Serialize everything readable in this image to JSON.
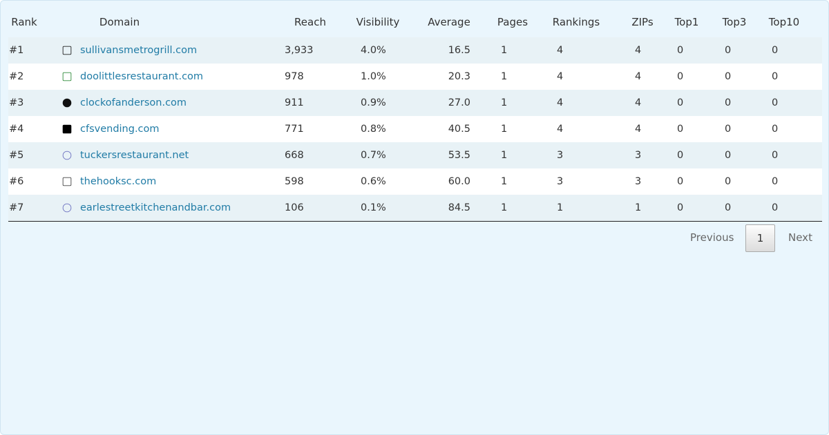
{
  "table": {
    "headers": [
      "Rank",
      "Domain",
      "Reach",
      "Visibility",
      "Average",
      "Pages",
      "Rankings",
      "ZIPs",
      "Top1",
      "Top3",
      "Top10"
    ],
    "rows": [
      [
        "#1",
        "sullivansmetrogrill.com",
        "3,933",
        "4.0%",
        "16.5",
        "1",
        "4",
        "4",
        "0",
        "0",
        "0"
      ],
      [
        "#2",
        "doolittlesrestaurant.com",
        "978",
        "1.0%",
        "20.3",
        "1",
        "4",
        "4",
        "0",
        "0",
        "0"
      ],
      [
        "#3",
        "clockofanderson.com",
        "911",
        "0.9%",
        "27.0",
        "1",
        "4",
        "4",
        "0",
        "0",
        "0"
      ],
      [
        "#4",
        "cfsvending.com",
        "771",
        "0.8%",
        "40.5",
        "1",
        "4",
        "4",
        "0",
        "0",
        "0"
      ],
      [
        "#5",
        "tuckersrestaurant.net",
        "668",
        "0.7%",
        "53.5",
        "1",
        "3",
        "3",
        "0",
        "0",
        "0"
      ],
      [
        "#6",
        "thehooksc.com",
        "598",
        "0.6%",
        "60.0",
        "1",
        "3",
        "3",
        "0",
        "0",
        "0"
      ],
      [
        "#7",
        "earlestreetkitchenandbar.com",
        "106",
        "0.1%",
        "84.5",
        "1",
        "1",
        "1",
        "0",
        "0",
        "0"
      ]
    ]
  },
  "pagination": {
    "previous": "Previous",
    "page": "1",
    "next": "Next"
  }
}
